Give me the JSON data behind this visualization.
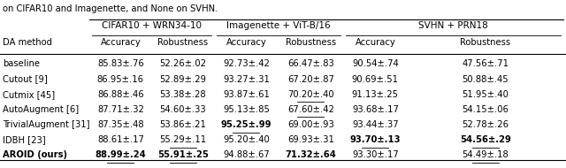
{
  "title_line": "on CIFAR10 and Imagenette, and None on SVHN.",
  "col_groups": [
    {
      "label": "CIFAR10 + WRN34-10"
    },
    {
      "label": "Imagenette + ViT-B/16"
    },
    {
      "label": "SVHN + PRN18"
    }
  ],
  "row_header": "DA method",
  "sub_headers": [
    "Accuracy",
    "Robustness",
    "Accuracy",
    "Robustness",
    "Accuracy",
    "Robustness"
  ],
  "rows": [
    {
      "method": "baseline",
      "method_bold": false,
      "values": [
        "85.83±.76",
        "52.26±.02",
        "92.73±.42",
        "66.47±.83",
        "90.54±.74",
        "47.56±.71"
      ],
      "bold": [
        false,
        false,
        false,
        false,
        false,
        false
      ],
      "underline": [
        false,
        false,
        false,
        false,
        false,
        false
      ]
    },
    {
      "method": "Cutout [9]",
      "method_bold": false,
      "values": [
        "86.95±.16",
        "52.89±.29",
        "93.27±.31",
        "67.20±.87",
        "90.69±.51",
        "50.88±.45"
      ],
      "bold": [
        false,
        false,
        false,
        false,
        false,
        false
      ],
      "underline": [
        false,
        false,
        false,
        false,
        false,
        false
      ]
    },
    {
      "method": "Cutmix [45]",
      "method_bold": false,
      "values": [
        "86.88±.46",
        "53.38±.28",
        "93.87±.61",
        "70.20±.40",
        "91.13±.25",
        "51.95±.40"
      ],
      "bold": [
        false,
        false,
        false,
        false,
        false,
        false
      ],
      "underline": [
        false,
        false,
        false,
        true,
        false,
        false
      ]
    },
    {
      "method": "AutoAugment [6]",
      "method_bold": false,
      "values": [
        "87.71±.32",
        "54.60±.33",
        "95.13±.85",
        "67.60±.42",
        "93.68±.17",
        "54.15±.06"
      ],
      "bold": [
        false,
        false,
        false,
        false,
        false,
        false
      ],
      "underline": [
        false,
        false,
        false,
        true,
        false,
        false
      ]
    },
    {
      "method": "TrivialAugment [31]",
      "method_bold": false,
      "values": [
        "87.35±.48",
        "53.86±.21",
        "95.25±.99",
        "69.00±.93",
        "93.44±.37",
        "52.78±.26"
      ],
      "bold": [
        false,
        false,
        true,
        false,
        false,
        false
      ],
      "underline": [
        false,
        false,
        true,
        false,
        false,
        false
      ]
    },
    {
      "method": "IDBH [23]",
      "method_bold": false,
      "values": [
        "88.61±.17",
        "55.29±.11",
        "95.20±.40",
        "69.93±.31",
        "93.70±.13",
        "54.56±.29"
      ],
      "bold": [
        false,
        false,
        false,
        false,
        true,
        true
      ],
      "underline": [
        false,
        true,
        false,
        false,
        true,
        true
      ]
    },
    {
      "method": "AROID (ours)",
      "method_bold": true,
      "values": [
        "88.99±.24",
        "55.91±.25",
        "94.88±.67",
        "71.32±.64",
        "93.30±.17",
        "54.49±.18"
      ],
      "bold": [
        true,
        true,
        false,
        true,
        false,
        false
      ],
      "underline": [
        true,
        true,
        false,
        false,
        false,
        true
      ]
    }
  ],
  "background_color": "#ffffff",
  "text_color": "#000000",
  "font_size": 7.2,
  "header_font_size": 7.5
}
